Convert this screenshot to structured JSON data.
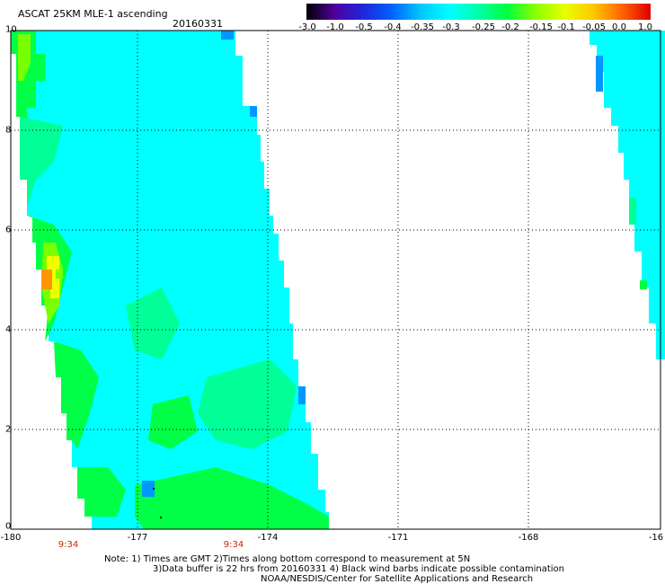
{
  "header": {
    "title": "ASCAT 25KM MLE-1 ascending",
    "date": "20160331"
  },
  "colorbar": {
    "labels": [
      "-3.0",
      "-1.0",
      "-0.5",
      "-0.4",
      "-0.35",
      "-0.3",
      "-0.25",
      "-0.2",
      "-0.15",
      "-0.1",
      "-0.05",
      "0.0",
      "1.0"
    ],
    "colors": [
      "#000000",
      "#5000a0",
      "#1e28dc",
      "#0064ff",
      "#00c8ff",
      "#00ffff",
      "#00ffaa",
      "#00ff3c",
      "#8cff00",
      "#e6ff00",
      "#ffc800",
      "#ff6400",
      "#dc0000"
    ]
  },
  "map": {
    "x_ticks": [
      "-180",
      "-177",
      "-174",
      "-171",
      "-168",
      "-16"
    ],
    "y_ticks": [
      "0",
      "2",
      "4",
      "6",
      "8",
      "10"
    ],
    "time_labels": [
      "9:34",
      "9:34"
    ],
    "colors": {
      "cyan": "#00ffff",
      "aqua_green": "#00ff96",
      "green": "#00ff46",
      "lime": "#78ff00",
      "yellow": "#f0ff00",
      "orange": "#ff9600",
      "blue": "#0096ff",
      "gridline": "#000000"
    }
  },
  "notes": {
    "line1": "Note: 1) Times are GMT 2)Times along bottom correspond to measurement at 5N",
    "line2": "3)Data buffer is 22 hrs from 20160331 4) Black wind barbs indicate possible contamination",
    "line3": "NOAA/NESDIS/Center for Satellite Applications and Research"
  }
}
